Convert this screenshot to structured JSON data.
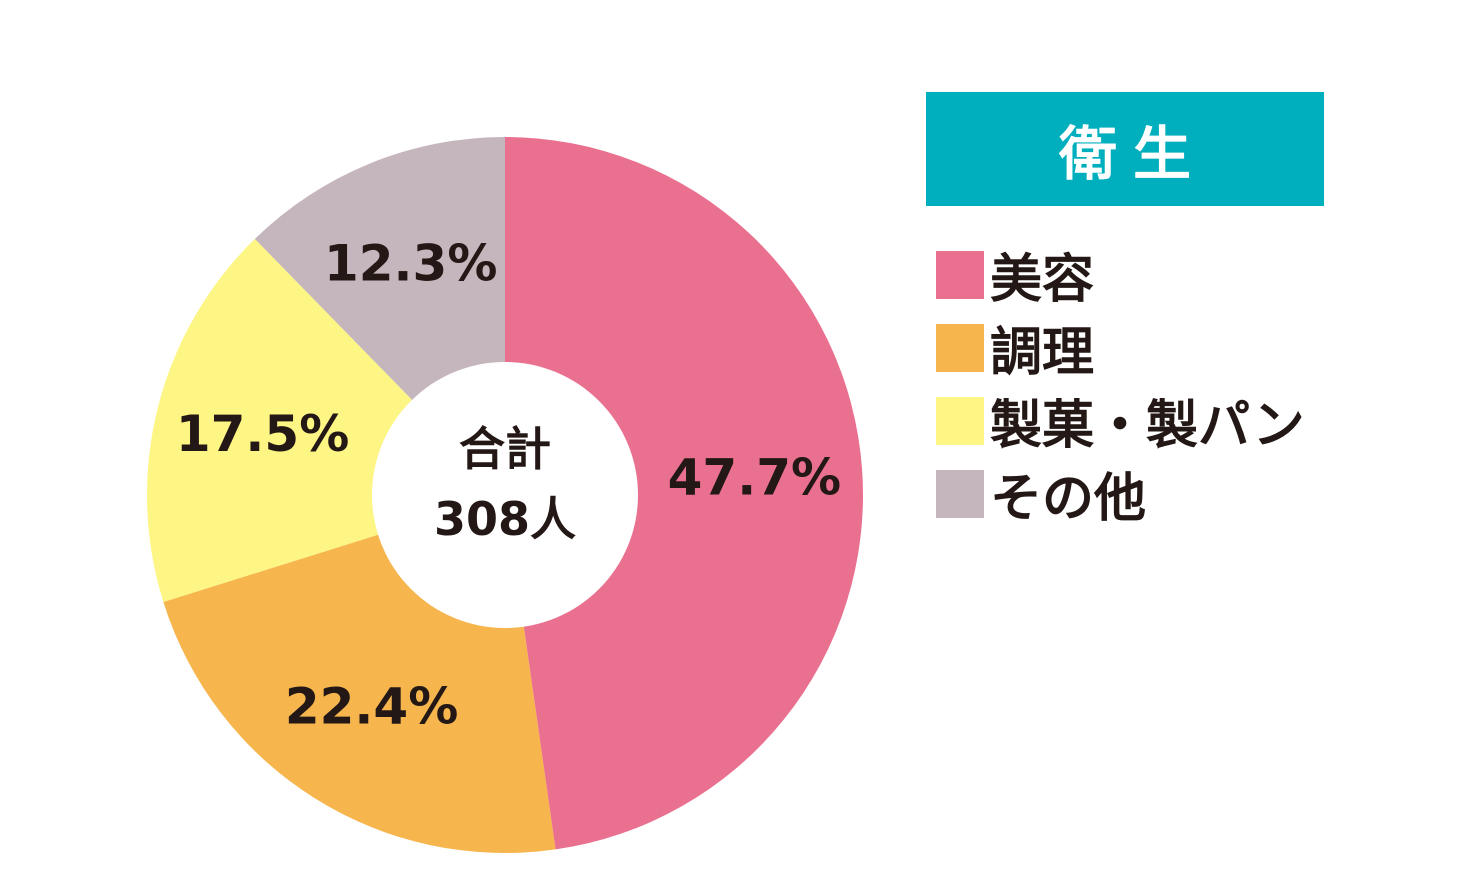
{
  "chart_data": {
    "type": "pie",
    "title": "衛生",
    "center": {
      "line1": "合計",
      "line2": "308人"
    },
    "series": [
      {
        "name": "美容",
        "value": 47.7,
        "label": "47.7%",
        "color": "#ea7090"
      },
      {
        "name": "調理",
        "value": 22.4,
        "label": "22.4%",
        "color": "#f6b54d"
      },
      {
        "name": "製菓・製パン",
        "value": 17.5,
        "label": "17.5%",
        "color": "#fdf584"
      },
      {
        "name": "その他",
        "value": 12.3,
        "label": "12.3%",
        "color": "#c5b5bd"
      }
    ],
    "legend_position": "right",
    "title_background": "#00afbd"
  }
}
